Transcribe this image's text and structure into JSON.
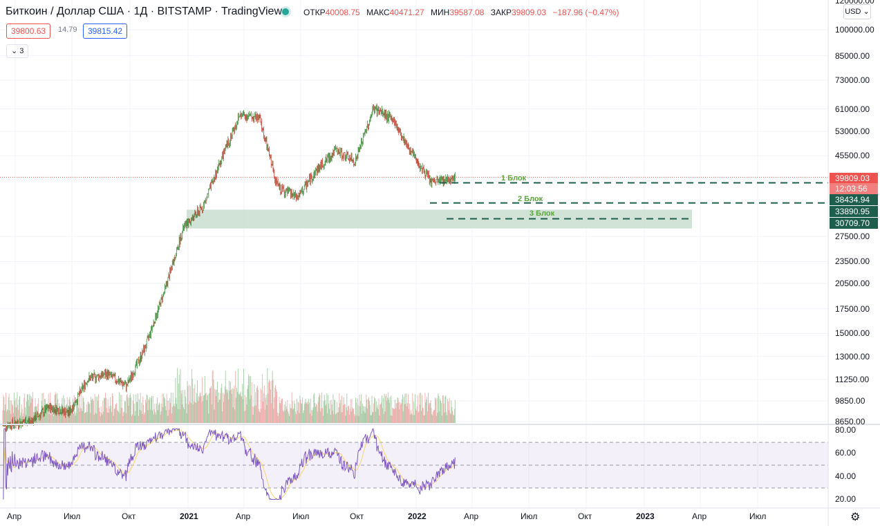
{
  "header": {
    "title": "Биткоин / Доллар США · 1Д · BITSTAMP · TradingView",
    "ohlc": [
      {
        "key": "ОТКР",
        "value": "40008.75"
      },
      {
        "key": "МАКС",
        "value": "40471.27"
      },
      {
        "key": "МИН",
        "value": "39587.08"
      },
      {
        "key": "ЗАКР",
        "value": "39809.03"
      },
      {
        "key": "",
        "value": "−187.96 (−0.47%)"
      }
    ],
    "sell_price": "39800.63",
    "spread": "14.79",
    "buy_price": "39815.42",
    "indicators_count": "3",
    "currency": "USD"
  },
  "colors": {
    "up": "#26a69a",
    "down": "#ef5350",
    "candle_up": "#3d8f3d",
    "candle_down": "#c0392b",
    "zone": "#c9ddcf",
    "rsi": "#7e57c2",
    "rsi_ma": "#f5d76e",
    "dash": "#1e5e4d",
    "accent_tag": "#1e5e4d"
  },
  "price_axis": [
    "120000.00",
    "100000.00",
    "85000.00",
    "73000.00",
    "61000.00",
    "53000.00",
    "45500.00",
    "27500.00",
    "23500.00",
    "20500.00",
    "17500.00",
    "15000.00",
    "13000.00",
    "11250.00",
    "9850.00",
    "8650.00"
  ],
  "price_tags": {
    "last": "39809.03",
    "countdown": "12:03:56",
    "b1": "38434.94",
    "b2": "33890.95",
    "b3": "30709.70"
  },
  "blocks": [
    "1 Блок",
    "2 Блок",
    "3 Блок"
  ],
  "rsi_axis": [
    "80.00",
    "60.00",
    "40.00",
    "20.00"
  ],
  "time_axis": [
    "Апр",
    "Июл",
    "Окт",
    "2021",
    "Апр",
    "Июл",
    "Окт",
    "2022",
    "Апр",
    "Июл",
    "Окт",
    "2023",
    "Апр",
    "Июл"
  ],
  "chart_data": {
    "type": "candlestick",
    "symbol": "BTC/USD",
    "interval": "1D",
    "y_scale": "log",
    "ylim": [
      8650,
      120000
    ],
    "x": [
      "2020-04",
      "2020-05",
      "2020-06",
      "2020-07",
      "2020-08",
      "2020-09",
      "2020-10",
      "2020-11",
      "2020-12",
      "2021-01",
      "2021-02",
      "2021-03",
      "2021-04",
      "2021-05",
      "2021-06",
      "2021-07",
      "2021-08",
      "2021-09",
      "2021-10",
      "2021-11",
      "2021-12",
      "2022-01",
      "2022-02"
    ],
    "close": [
      8700,
      9450,
      9150,
      11300,
      11650,
      10800,
      13800,
      19700,
      29000,
      33100,
      45200,
      58800,
      57700,
      37300,
      35000,
      41500,
      47100,
      43800,
      61300,
      57000,
      46200,
      38500,
      39809
    ],
    "levels": [
      38434.94,
      33890.95,
      30709.7
    ],
    "zone": [
      28900,
      32500
    ],
    "rsi_ylim": [
      15,
      85
    ],
    "rsi_bands": [
      70,
      50,
      30
    ]
  }
}
